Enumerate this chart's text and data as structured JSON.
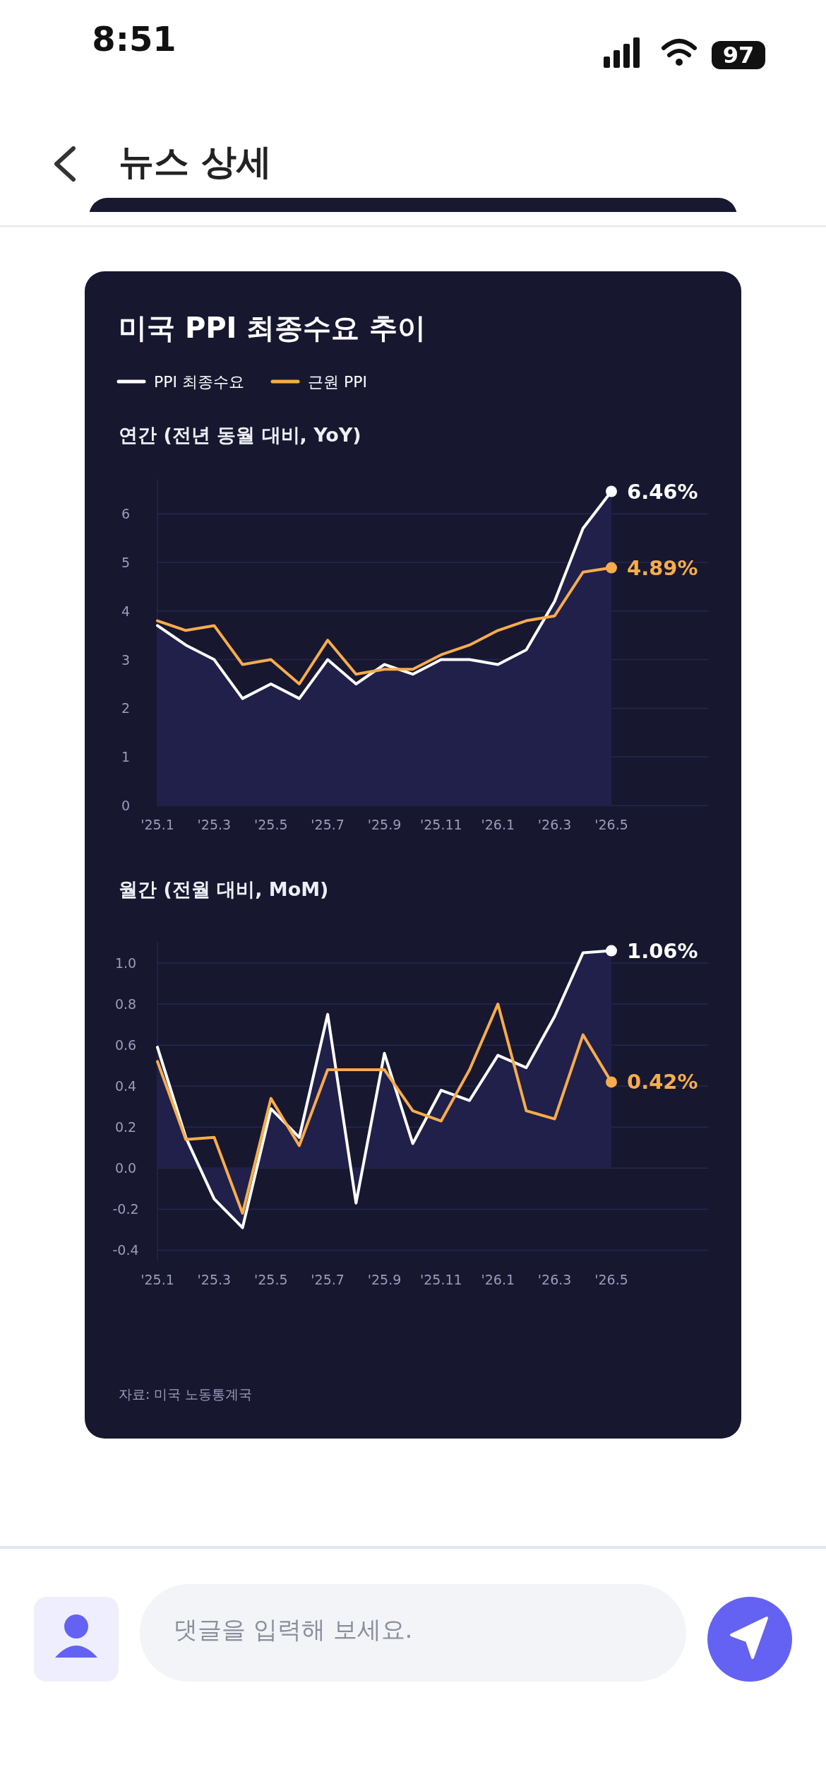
{
  "chart_data": [
    {
      "type": "other",
      "title": "뉴스 상세",
      "annotations": [
        "8:51",
        "97",
        "댓글을 입력해 보세요."
      ]
    },
    {
      "type": "line",
      "title": "미국 PPI 최종수요 추이",
      "subtitle": "연간 (전년 동월 대비, YoY)",
      "categories": [
        "'25.1",
        null,
        "'25.3",
        null,
        "'25.5",
        null,
        "'25.7",
        null,
        "'25.9",
        null,
        "'25.11",
        null,
        "'26.1",
        null,
        "'26.3",
        null,
        "'26.5"
      ],
      "ylim": [
        0,
        6.7
      ],
      "yticks": [
        0,
        1,
        2,
        3,
        4,
        5,
        6
      ],
      "grid": "y",
      "legend": "top left",
      "series": [
        {
          "name": "PPI 최종수요",
          "type": "area",
          "color": "#ffffff",
          "values": [
            3.7,
            3.3,
            3.0,
            2.2,
            2.5,
            2.2,
            3.0,
            2.5,
            2.9,
            2.7,
            3.0,
            3.0,
            2.9,
            3.2,
            4.2,
            5.7,
            6.46
          ],
          "value_labels": [
            null,
            null,
            null,
            null,
            null,
            null,
            null,
            null,
            null,
            null,
            null,
            null,
            null,
            null,
            null,
            null,
            "6.46%"
          ]
        },
        {
          "name": "근원 PPI",
          "type": "line",
          "color": "#f7ac4b",
          "values": [
            3.8,
            3.6,
            3.7,
            2.9,
            3.0,
            2.5,
            3.4,
            2.7,
            2.8,
            2.8,
            3.1,
            3.3,
            3.6,
            3.8,
            3.9,
            4.8,
            4.89
          ],
          "value_labels": [
            null,
            null,
            null,
            null,
            null,
            null,
            null,
            null,
            null,
            null,
            null,
            null,
            null,
            null,
            null,
            null,
            "4.89%"
          ]
        }
      ]
    },
    {
      "type": "line",
      "subtitle": "월간 (전월 대비, MoM)",
      "categories": [
        "'25.1",
        null,
        "'25.3",
        null,
        "'25.5",
        null,
        "'25.7",
        null,
        "'25.9",
        null,
        "'25.11",
        null,
        "'26.1",
        null,
        "'26.3",
        null,
        "'26.5"
      ],
      "ylim": [
        -0.45,
        1.1
      ],
      "yticks": [
        {
          "value": -0.4,
          "label": "-0.4"
        },
        {
          "value": -0.2,
          "label": "-0.2"
        },
        {
          "value": 0,
          "label": "0.0"
        },
        {
          "value": 0.2,
          "label": "0.2"
        },
        {
          "value": 0.4,
          "label": "0.4"
        },
        {
          "value": 0.6,
          "label": "0.6"
        },
        {
          "value": 0.8,
          "label": "0.8"
        },
        {
          "value": 1,
          "label": "1.0"
        }
      ],
      "grid": "y",
      "annotations": [
        "자료: 미국 노동통계국"
      ],
      "series": [
        {
          "type": "area",
          "color": "#ffffff",
          "values": [
            0.59,
            0.15,
            -0.15,
            -0.29,
            0.29,
            0.15,
            0.75,
            -0.17,
            0.56,
            0.12,
            0.38,
            0.33,
            0.55,
            0.49,
            0.74,
            1.05,
            1.06
          ],
          "value_labels": [
            null,
            null,
            null,
            null,
            null,
            null,
            null,
            null,
            null,
            null,
            null,
            null,
            null,
            null,
            null,
            null,
            "1.06%"
          ]
        },
        {
          "type": "line",
          "color": "#f7ac4b",
          "values": [
            0.52,
            0.14,
            0.15,
            -0.22,
            0.34,
            0.11,
            0.48,
            0.48,
            0.48,
            0.28,
            0.23,
            0.48,
            0.8,
            0.28,
            0.24,
            0.65,
            0.42
          ],
          "value_labels": [
            null,
            null,
            null,
            null,
            null,
            null,
            null,
            null,
            null,
            null,
            null,
            null,
            null,
            null,
            null,
            null,
            "0.42%"
          ]
        }
      ]
    }
  ]
}
